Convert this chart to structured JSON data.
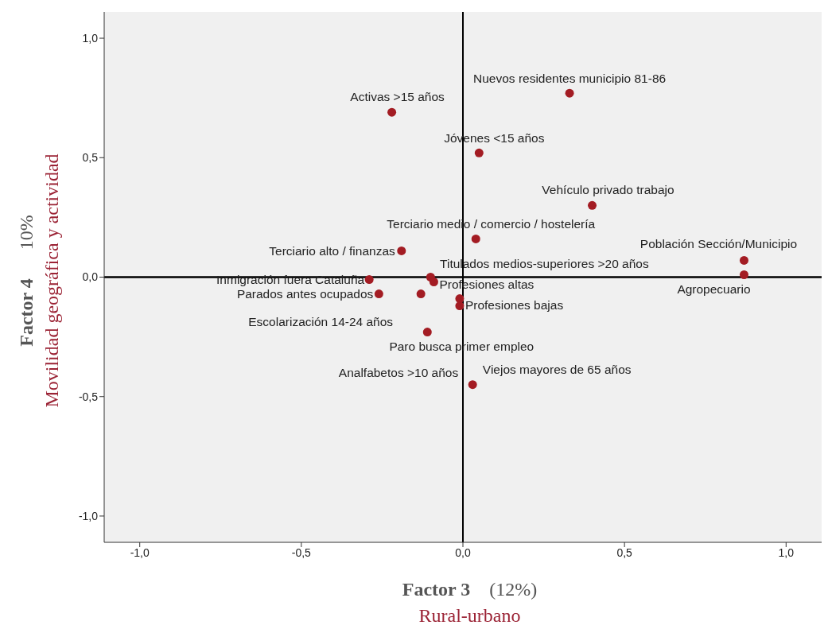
{
  "chart_data": {
    "type": "scatter",
    "xlabel": "Factor 3 (12%)",
    "ylabel": "Factor 4 10%",
    "x": [
      0.33,
      -0.22,
      0.05,
      0.4,
      0.04,
      -0.19,
      0.87,
      0.87,
      -0.1,
      -0.09,
      -0.29,
      -0.26,
      -0.13,
      -0.01,
      -0.11,
      -0.01,
      0.03
    ],
    "values": [
      0.77,
      0.69,
      0.52,
      0.3,
      0.16,
      0.11,
      0.07,
      0.01,
      0.0,
      -0.02,
      -0.01,
      -0.07,
      -0.07,
      -0.12,
      -0.23,
      -0.09,
      -0.45
    ],
    "color": "#a31c23",
    "marker": "circle",
    "xlim": [
      -1.11,
      1.11
    ],
    "ylim": [
      -1.11,
      1.11
    ],
    "xticks": [
      {
        "value": -1,
        "label": "-1,0"
      },
      {
        "value": -0.5,
        "label": "-0,5"
      },
      {
        "value": 0,
        "label": "0,0"
      },
      {
        "value": 0.5,
        "label": "0,5"
      },
      {
        "value": 1,
        "label": "1,0"
      }
    ],
    "yticks": [
      {
        "value": -1,
        "label": "-1,0"
      },
      {
        "value": -0.5,
        "label": "-0,5"
      },
      {
        "value": 0,
        "label": "0,0"
      },
      {
        "value": 0.5,
        "label": "0,5"
      },
      {
        "value": 1,
        "label": "1,0"
      }
    ],
    "ref_lines": [
      {
        "axis": "x",
        "value": 0,
        "color": "#000000"
      },
      {
        "axis": "y",
        "value": 0,
        "color": "#000000"
      }
    ],
    "annotations": [
      "Rural-urbano",
      "Movilidad geográfica y actividad",
      {
        "text": "Nuevos residentes municipio 81-86",
        "x": 0.33,
        "y": 0.77
      },
      {
        "text": "Activas >15 años",
        "x": -0.22,
        "y": 0.69
      },
      {
        "text": "Jóvenes <15 años",
        "x": 0.05,
        "y": 0.52
      },
      {
        "text": "Vehículo privado trabajo",
        "x": 0.4,
        "y": 0.3
      },
      {
        "text": "Terciario medio / comercio / hostelería",
        "x": 0.04,
        "y": 0.16
      },
      {
        "text": "Terciario alto / finanzas",
        "x": -0.19,
        "y": 0.11
      },
      {
        "text": "Población Sección/Municipio",
        "x": 0.87,
        "y": 0.07
      },
      {
        "text": "Agropecuario",
        "x": 0.87,
        "y": 0.01
      },
      {
        "text": "Titulados medios-superiores >20 años",
        "x": -0.1,
        "y": 0.0
      },
      {
        "text": "Profesiones altas",
        "x": -0.09,
        "y": -0.02
      },
      {
        "text": "Inmigración fuera Cataluña",
        "x": -0.29,
        "y": -0.01
      },
      {
        "text": "Parados antes ocupados",
        "x": -0.26,
        "y": -0.07
      },
      {
        "text": "Escolarización 14-24 años",
        "x": -0.13,
        "y": -0.07
      },
      {
        "text": "Profesiones bajas",
        "x": -0.01,
        "y": -0.12
      },
      {
        "text": "Paro busca primer empleo",
        "x": -0.11,
        "y": -0.23
      },
      {
        "text": "Analfabetos >10 años",
        "x": 0.03,
        "y": -0.45
      },
      {
        "text": "Viejos mayores de 65 años",
        "x": 0.03,
        "y": -0.45
      }
    ]
  }
}
